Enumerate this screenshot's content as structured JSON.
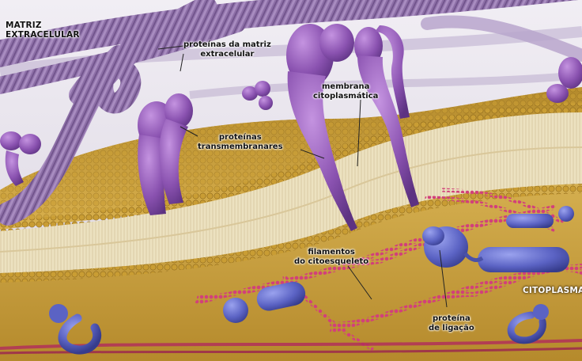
{
  "labels": {
    "matriz": [
      "MATRIZ",
      "EXTRACELULAR"
    ],
    "proteinas_matriz": [
      "proteínas da matriz",
      "extracelular"
    ],
    "membrana": [
      "membrana",
      "citoplasmática"
    ],
    "transmembranares": [
      "proteínas",
      "transmembranares"
    ],
    "filamentos": [
      "filamentos",
      "do citoesqueleto"
    ],
    "citoplasma": "CITOPLASMA",
    "proteina_ligacao": [
      "proteína",
      "de ligação"
    ]
  },
  "colors": {
    "background": "#e9e6ee",
    "membrane_heads": "#c9a238",
    "membrane_tails": "#efe4c4",
    "cytoplasm": "#d8b04c",
    "matrix_fibers": "#8d6fa8",
    "transmembrane_protein": "#8a52b0",
    "cytoskeleton": "#c8346b",
    "linker_protein": "#5b63c4"
  }
}
